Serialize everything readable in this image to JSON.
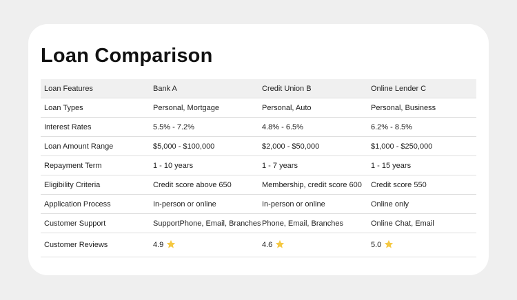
{
  "title": "Loan Comparison",
  "table": {
    "header": [
      "Loan Features",
      "Bank A",
      "Credit Union B",
      "Online Lender C"
    ],
    "rows": [
      [
        "Loan Types",
        "Personal, Mortgage",
        "Personal, Auto",
        "Personal, Business"
      ],
      [
        "Interest Rates",
        "5.5% - 7.2%",
        "4.8% - 6.5%",
        "6.2% - 8.5%"
      ],
      [
        "Loan Amount Range",
        "$5,000 - $100,000",
        "$2,000 - $50,000",
        "$1,000 - $250,000"
      ],
      [
        "Repayment Term",
        "1 - 10 years",
        "1 - 7 years",
        "1 - 15 years"
      ],
      [
        "Eligibility Criteria",
        "Credit score above 650",
        "Membership, credit score 600",
        "Credit score 550"
      ],
      [
        "Application Process",
        "In-person or online",
        "In-person or online",
        "Online only"
      ],
      [
        "Customer Support",
        "SupportPhone, Email, Branches",
        "Phone, Email, Branches",
        "Online Chat, Email"
      ],
      [
        "Customer Reviews",
        "4.9",
        "4.6",
        "5.0"
      ]
    ]
  }
}
